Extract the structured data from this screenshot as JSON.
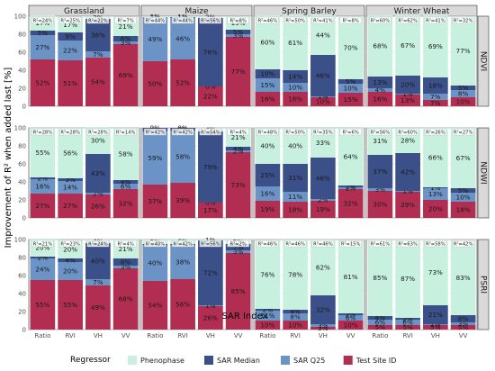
{
  "chart_data": {
    "type": "bar",
    "stacked": true,
    "xlabel": "SAR Index",
    "ylabel": "Improvement of R² when added last [%]",
    "ylim": [
      0,
      100
    ],
    "yticks": [
      0,
      20,
      40,
      60,
      80,
      100
    ],
    "categories": [
      "Ratio",
      "RVI",
      "VH",
      "VV"
    ],
    "columns": [
      "Grassland",
      "Maize",
      "Spring Barley",
      "Winter Wheat"
    ],
    "rows": [
      "NDVI",
      "NDWI",
      "PSRI"
    ],
    "legend": {
      "title": "Regressor",
      "position": "bottom",
      "entries": [
        {
          "name": "Phenophase",
          "color": "#c7f0df"
        },
        {
          "name": "SAR Median",
          "color": "#3b5089"
        },
        {
          "name": "SAR Q25",
          "color": "#6b93c5"
        },
        {
          "name": "Test Site ID",
          "color": "#b22d52"
        }
      ]
    },
    "series_order": [
      "Test Site ID",
      "SAR Q25",
      "SAR Median",
      "Phenophase"
    ],
    "panels": [
      {
        "row": "NDVI",
        "col": "Grassland",
        "bars": [
          {
            "category": "Ratio",
            "r2": "R²=24%",
            "values": [
              52,
              27,
              5,
              17
            ],
            "labels": [
              "52%",
              "27%",
              "5%",
              "17%"
            ]
          },
          {
            "category": "RVI",
            "r2": "R²=25%",
            "values": [
              51,
              22,
              9,
              17
            ],
            "labels": [
              "51%",
              "22%",
              "9%",
              "17%"
            ]
          },
          {
            "category": "VH",
            "r2": "R²=22%",
            "values": [
              54,
              7,
              36,
              3
            ],
            "labels": [
              "54%",
              "7%",
              "36%",
              "3%"
            ]
          },
          {
            "category": "VV",
            "r2": "R²=7%",
            "values": [
              69,
              3,
              6,
              21
            ],
            "labels": [
              "69%",
              "3%",
              "6%",
              "21%"
            ]
          }
        ]
      },
      {
        "row": "NDVI",
        "col": "Maize",
        "bars": [
          {
            "category": "Ratio",
            "r2": "R²=44%",
            "values": [
              50,
              49,
              0,
              1
            ],
            "labels": [
              "50%",
              "49%",
              "0%",
              "1%"
            ]
          },
          {
            "category": "RVI",
            "r2": "R²=44%",
            "values": [
              52,
              46,
              1,
              1
            ],
            "labels": [
              "52%",
              "46%",
              "1%",
              "1%"
            ]
          },
          {
            "category": "VH",
            "r2": "R²=56%",
            "values": [
              22,
              0,
              76,
              2
            ],
            "labels": [
              "22%",
              "0%",
              "76%",
              "2%"
            ]
          },
          {
            "category": "VV",
            "r2": "R²=8%",
            "values": [
              77,
              3,
              5,
              15
            ],
            "labels": [
              "77%",
              "3%",
              "5%",
              "15%"
            ]
          }
        ]
      },
      {
        "row": "NDVI",
        "col": "Spring Barley",
        "bars": [
          {
            "category": "Ratio",
            "r2": "R²=46%",
            "values": [
              16,
              15,
              10,
              60
            ],
            "labels": [
              "16%",
              "15%",
              "10%",
              "60%"
            ]
          },
          {
            "category": "RVI",
            "r2": "R²=50%",
            "values": [
              16,
              10,
              14,
              61
            ],
            "labels": [
              "16%",
              "10%",
              "14%",
              "61%"
            ]
          },
          {
            "category": "VH",
            "r2": "R²=41%",
            "values": [
              10,
              1,
              46,
              44
            ],
            "labels": [
              "10%",
              "1%",
              "46%",
              "44%"
            ]
          },
          {
            "category": "VV",
            "r2": "R²=8%",
            "values": [
              15,
              10,
              5,
              70
            ],
            "labels": [
              "15%",
              "10%",
              "5%",
              "70%"
            ]
          }
        ]
      },
      {
        "row": "NDVI",
        "col": "Winter Wheat",
        "bars": [
          {
            "category": "Ratio",
            "r2": "R²=60%",
            "values": [
              16,
              4,
              13,
              68
            ],
            "labels": [
              "16%",
              "4%",
              "13%",
              "68%"
            ]
          },
          {
            "category": "RVI",
            "r2": "R²=62%",
            "values": [
              13,
              1,
              20,
              67
            ],
            "labels": [
              "13%",
              "1%",
              "20%",
              "67%"
            ]
          },
          {
            "category": "VH",
            "r2": "R²=41%",
            "values": [
              7,
              7,
              18,
              69
            ],
            "labels": [
              "7%",
              "7%",
              "18%",
              "69%"
            ]
          },
          {
            "category": "VV",
            "r2": "R²=32%",
            "values": [
              10,
              8,
              5,
              77
            ],
            "labels": [
              "10%",
              "8%",
              "5%",
              "77%"
            ]
          }
        ]
      },
      {
        "row": "NDWI",
        "col": "Grassland",
        "bars": [
          {
            "category": "Ratio",
            "r2": "R²=28%",
            "values": [
              27,
              16,
              2,
              55
            ],
            "labels": [
              "27%",
              "16%",
              "2%",
              "55%"
            ]
          },
          {
            "category": "RVI",
            "r2": "R²=28%",
            "values": [
              27,
              14,
              3,
              56
            ],
            "labels": [
              "27%",
              "14%",
              "3%",
              "56%"
            ]
          },
          {
            "category": "VH",
            "r2": "R²=28%",
            "values": [
              26,
              2,
              43,
              30
            ],
            "labels": [
              "26%",
              "2%",
              "43%",
              "30%"
            ]
          },
          {
            "category": "VV",
            "r2": "R²=14%",
            "values": [
              32,
              6,
              4,
              58
            ],
            "labels": [
              "32%",
              "6%",
              "4%",
              "58%"
            ]
          }
        ]
      },
      {
        "row": "NDWI",
        "col": "Maize",
        "bars": [
          {
            "category": "Ratio",
            "r2": "R²=42%",
            "values": [
              37,
              59,
              4,
              0
            ],
            "labels": [
              "37%",
              "59%",
              "4%",
              "0%"
            ]
          },
          {
            "category": "RVI",
            "r2": "R²=42%",
            "values": [
              39,
              58,
              3,
              0
            ],
            "labels": [
              "39%",
              "58%",
              "3%",
              "0%"
            ]
          },
          {
            "category": "VH",
            "r2": "R²=54%",
            "values": [
              17,
              0,
              79,
              4
            ],
            "labels": [
              "17%",
              "0%",
              "79%",
              "4%"
            ]
          },
          {
            "category": "VV",
            "r2": "R²=4%",
            "values": [
              73,
              2,
              4,
              21
            ],
            "labels": [
              "73%",
              "2%",
              "4%",
              "21%"
            ]
          }
        ]
      },
      {
        "row": "NDWI",
        "col": "Spring Barley",
        "bars": [
          {
            "category": "Ratio",
            "r2": "R²=48%",
            "values": [
              19,
              16,
              25,
              40
            ],
            "labels": [
              "19%",
              "16%",
              "25%",
              "40%"
            ]
          },
          {
            "category": "RVI",
            "r2": "R²=50%",
            "values": [
              18,
              11,
              31,
              40
            ],
            "labels": [
              "18%",
              "11%",
              "31%",
              "40%"
            ]
          },
          {
            "category": "VH",
            "r2": "R²=35%",
            "values": [
              19,
              2,
              46,
              33
            ],
            "labels": [
              "19%",
              "2%",
              "46%",
              "33%"
            ]
          },
          {
            "category": "VV",
            "r2": "R²=6%",
            "values": [
              32,
              2,
              2,
              64
            ],
            "labels": [
              "32%",
              "2%",
              "2%",
              "64%"
            ]
          }
        ]
      },
      {
        "row": "NDWI",
        "col": "Winter Wheat",
        "bars": [
          {
            "category": "Ratio",
            "r2": "R²=56%",
            "values": [
              30,
              3,
              37,
              31
            ],
            "labels": [
              "30%",
              "3%",
              "37%",
              "31%"
            ]
          },
          {
            "category": "RVI",
            "r2": "R²=60%",
            "values": [
              29,
              1,
              42,
              28
            ],
            "labels": [
              "29%",
              "1%",
              "42%",
              "28%"
            ]
          },
          {
            "category": "VH",
            "r2": "R²=26%",
            "values": [
              20,
              13,
              1,
              66
            ],
            "labels": [
              "20%",
              "13%",
              "1%",
              "66%"
            ]
          },
          {
            "category": "VV",
            "r2": "R²=27%",
            "values": [
              18,
              10,
              5,
              67
            ],
            "labels": [
              "18%",
              "10%",
              "5%",
              "67%"
            ]
          }
        ]
      },
      {
        "row": "PSRI",
        "col": "Grassland",
        "bars": [
          {
            "category": "Ratio",
            "r2": "R²=21%",
            "values": [
              55,
              24,
              2,
              20
            ],
            "labels": [
              "55%",
              "24%",
              "2%",
              "20%"
            ]
          },
          {
            "category": "RVI",
            "r2": "R²=23%",
            "values": [
              55,
              20,
              4,
              20
            ],
            "labels": [
              "55%",
              "20%",
              "4%",
              "20%"
            ]
          },
          {
            "category": "VH",
            "r2": "R²=24%",
            "values": [
              49,
              7,
              40,
              4
            ],
            "labels": [
              "49%",
              "7%",
              "40%",
              "4%"
            ]
          },
          {
            "category": "VV",
            "r2": "R²=4%",
            "values": [
              68,
              3,
              8,
              21
            ],
            "labels": [
              "68%",
              "3%",
              "8%",
              "21%"
            ]
          }
        ]
      },
      {
        "row": "PSRI",
        "col": "Maize",
        "bars": [
          {
            "category": "Ratio",
            "r2": "R²=40%",
            "values": [
              54,
              40,
              1,
              5
            ],
            "labels": [
              "54%",
              "40%",
              "1%",
              "5%"
            ]
          },
          {
            "category": "RVI",
            "r2": "R²=42%",
            "values": [
              56,
              38,
              1,
              6
            ],
            "labels": [
              "56%",
              "38%",
              "1%",
              "6%"
            ]
          },
          {
            "category": "VH",
            "r2": "R²=56%",
            "values": [
              26,
              1,
              72,
              1
            ],
            "labels": [
              "26%",
              "1%",
              "72%",
              "1%"
            ]
          },
          {
            "category": "VV",
            "r2": "R²=2%",
            "values": [
              85,
              3,
              7,
              5
            ],
            "labels": [
              "85%",
              "3%",
              "7%",
              "5%"
            ]
          }
        ]
      },
      {
        "row": "PSRI",
        "col": "Spring Barley",
        "bars": [
          {
            "category": "Ratio",
            "r2": "R²=46%",
            "values": [
              10,
              11,
              2,
              76
            ],
            "labels": [
              "10%",
              "11%",
              "2%",
              "76%"
            ]
          },
          {
            "category": "RVI",
            "r2": "R²=46%",
            "values": [
              10,
              8,
              4,
              78
            ],
            "labels": [
              "10%",
              "8%",
              "4%",
              "78%"
            ]
          },
          {
            "category": "VH",
            "r2": "R²=46%",
            "values": [
              3,
              3,
              32,
              62
            ],
            "labels": [
              "3%",
              "3%",
              "32%",
              "62%"
            ]
          },
          {
            "category": "VV",
            "r2": "R²=15%",
            "values": [
              10,
              6,
              2,
              81
            ],
            "labels": [
              "10%",
              "6%",
              "2%",
              "81%"
            ]
          }
        ]
      },
      {
        "row": "PSRI",
        "col": "Winter Wheat",
        "bars": [
          {
            "category": "Ratio",
            "r2": "R²=61%",
            "values": [
              5,
              6,
              4,
              85
            ],
            "labels": [
              "5%",
              "6%",
              "4%",
              "85%"
            ]
          },
          {
            "category": "RVI",
            "r2": "R²=63%",
            "values": [
              5,
              6,
              2,
              87
            ],
            "labels": [
              "5%",
              "6%",
              "2%",
              "87%"
            ]
          },
          {
            "category": "VH",
            "r2": "R²=58%",
            "values": [
              5,
              1,
              21,
              73
            ],
            "labels": [
              "5%",
              "1%",
              "21%",
              "73%"
            ]
          },
          {
            "category": "VV",
            "r2": "R²=42%",
            "values": [
              5,
              3,
              8,
              83
            ],
            "labels": [
              "5%",
              "3%",
              "8%",
              "83%"
            ]
          }
        ]
      }
    ]
  }
}
